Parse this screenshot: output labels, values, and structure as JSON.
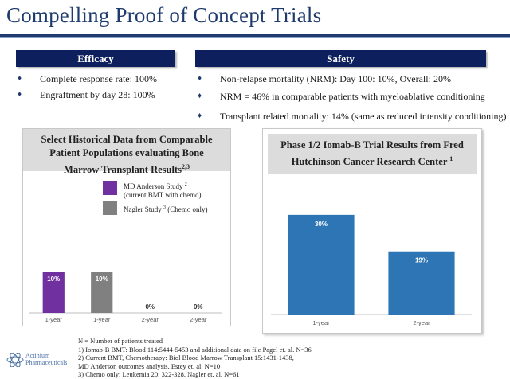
{
  "title": "Compelling Proof  of  Concept Trials",
  "efficacy": {
    "header": "Efficacy",
    "bullets": [
      "Complete response rate: 100%",
      "Engraftment by day 28: 100%"
    ]
  },
  "safety": {
    "header": "Safety",
    "bullets": [
      "Non-relapse mortality (NRM): Day 100: 10%, Overall: 20%",
      "NRM = 46% in comparable patients with myeloablative conditioning",
      "Transplant related mortality: 14% (same as reduced intensity conditioning)"
    ]
  },
  "left_panel": {
    "header_line1": "Select Historical Data from Comparable",
    "header_line2": "Patient Populations evaluating Bone",
    "header_line3": "Marrow Transplant Results",
    "header_sup": "2,3",
    "legend": [
      {
        "line1": "MD Anderson Study ",
        "sup": "2",
        "line2": "(current BMT with chemo)",
        "color": "#7030a0"
      },
      {
        "line1": "Nagler Study ",
        "sup": "3",
        "line2": " (Chemo only)",
        "color": "#808080"
      }
    ]
  },
  "right_panel": {
    "header_line1": "Phase 1/2 Iomab-B Trial Results from Fred",
    "header_line2": "Hutchinson Cancer Research Center ",
    "header_sup": "1"
  },
  "chart_data": [
    {
      "type": "bar",
      "categories": [
        "1-year",
        "1-year",
        "2-year",
        "2-year"
      ],
      "values": [
        10,
        10,
        0,
        0
      ],
      "labels": [
        "10%",
        "10%",
        "0%",
        "0%"
      ],
      "colors": [
        "#7030a0",
        "#808080",
        "#7030a0",
        "#808080"
      ],
      "ylim": [
        0,
        40
      ]
    },
    {
      "type": "bar",
      "categories": [
        "1-year",
        "2-year"
      ],
      "values": [
        30,
        19
      ],
      "labels": [
        "30%",
        "19%"
      ],
      "colors": [
        "#2e75b6",
        "#2e75b6"
      ],
      "ylim": [
        0,
        35
      ]
    }
  ],
  "footnotes": [
    "N = Number of patients treated",
    "1) Iomab-B BMT: Blood 114:5444-5453 and additional data on file Pagel et. al.  N=36",
    "2) Current BMT, Chemotherapy: Biol Blood Marrow Transplant 15:1431-1438,",
    "MD Anderson outcomes analysis. Estey et. al.  N=10",
    "3) Chemo only: Leukemia 20: 322-328. Nagler et. al. N=61"
  ],
  "logo": {
    "line1": "Actinium",
    "line2": "Pharmaceuticals"
  }
}
